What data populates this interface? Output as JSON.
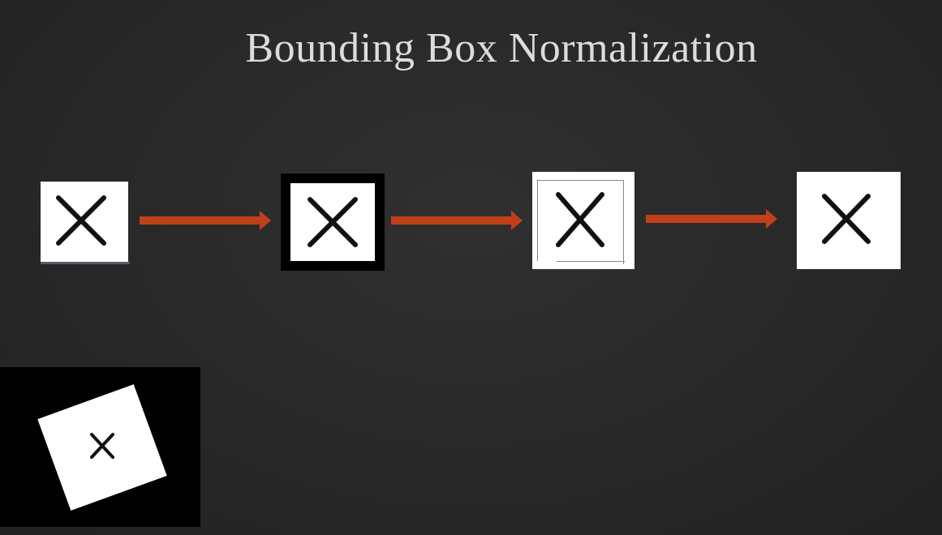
{
  "title": "Bounding Box Normalization",
  "stages": [
    {
      "id": "original",
      "icon": "x-glyph-icon"
    },
    {
      "id": "padded",
      "icon": "x-glyph-icon"
    },
    {
      "id": "cropped",
      "icon": "x-glyph-icon"
    },
    {
      "id": "normalized",
      "icon": "x-glyph-icon"
    }
  ],
  "rotated_example": {
    "icon": "x-glyph-icon",
    "rotation_deg": -20
  },
  "colors": {
    "background": "#2a2a2a",
    "title": "#dcdcdc",
    "arrow": "#c0401a",
    "tile": "#ffffff",
    "glyph": "#111111",
    "frame": "#000000"
  }
}
